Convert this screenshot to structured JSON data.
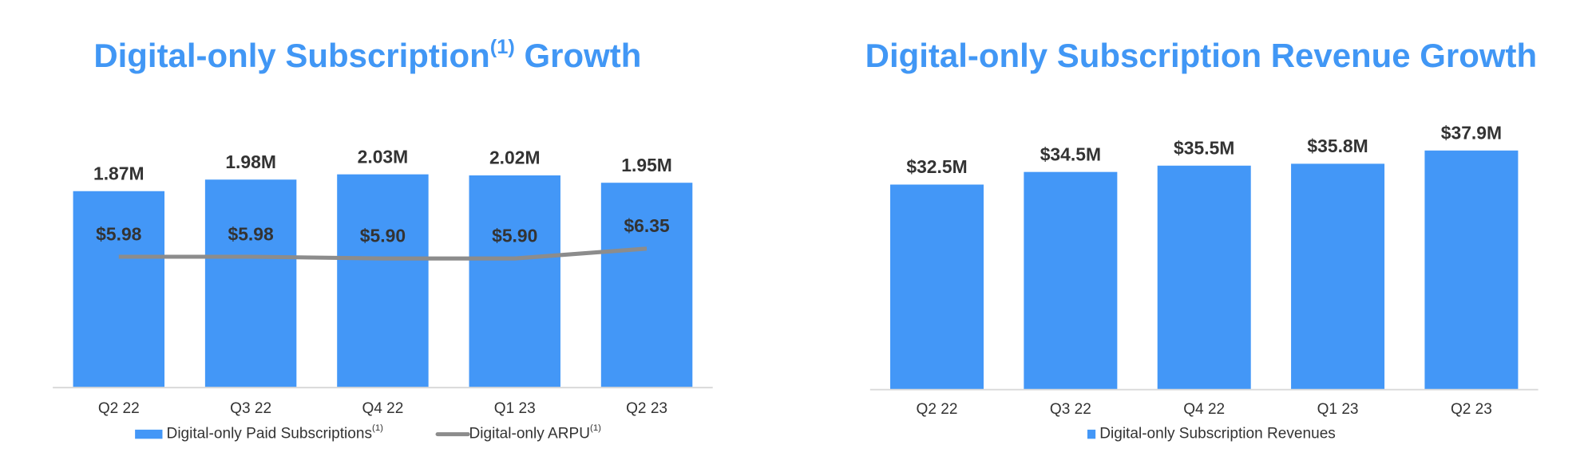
{
  "chart_data": [
    {
      "type": "bar",
      "title": "Digital-only Subscription",
      "title_footnote": "(1)",
      "title_suffix": " Growth",
      "categories": [
        "Q2 22",
        "Q3 22",
        "Q4 22",
        "Q1 23",
        "Q2 23"
      ],
      "series": [
        {
          "name": "Digital-only Paid Subscriptions",
          "name_footnote": "(1)",
          "type": "bar",
          "color": "#4397f7",
          "values": [
            1.87,
            1.98,
            2.03,
            2.02,
            1.95
          ],
          "value_labels": [
            "1.87M",
            "1.98M",
            "2.03M",
            "2.02M",
            "1.95M"
          ]
        },
        {
          "name": "Digital-only ARPU",
          "name_footnote": "(1)",
          "type": "line",
          "axis": "y2",
          "color": "#8c8c8c",
          "values": [
            5.98,
            5.98,
            5.9,
            5.9,
            6.35
          ],
          "value_labels": [
            "$5.98",
            "$5.98",
            "$5.90",
            "$5.90",
            "$6.35"
          ]
        }
      ],
      "ylim": [
        0,
        2.5
      ],
      "y2lim": [
        0,
        12
      ]
    },
    {
      "type": "bar",
      "title": "Digital-only Subscription Revenue Growth",
      "categories": [
        "Q2 22",
        "Q3 22",
        "Q4 22",
        "Q1 23",
        "Q2 23"
      ],
      "series": [
        {
          "name": "Digital-only Subscription Revenues",
          "type": "bar",
          "color": "#4397f7",
          "values": [
            32.5,
            34.5,
            35.5,
            35.8,
            37.9
          ],
          "value_labels": [
            "$32.5M",
            "$34.5M",
            "$35.5M",
            "$35.8M",
            "$37.9M"
          ]
        }
      ],
      "ylim": [
        0,
        45
      ]
    }
  ]
}
